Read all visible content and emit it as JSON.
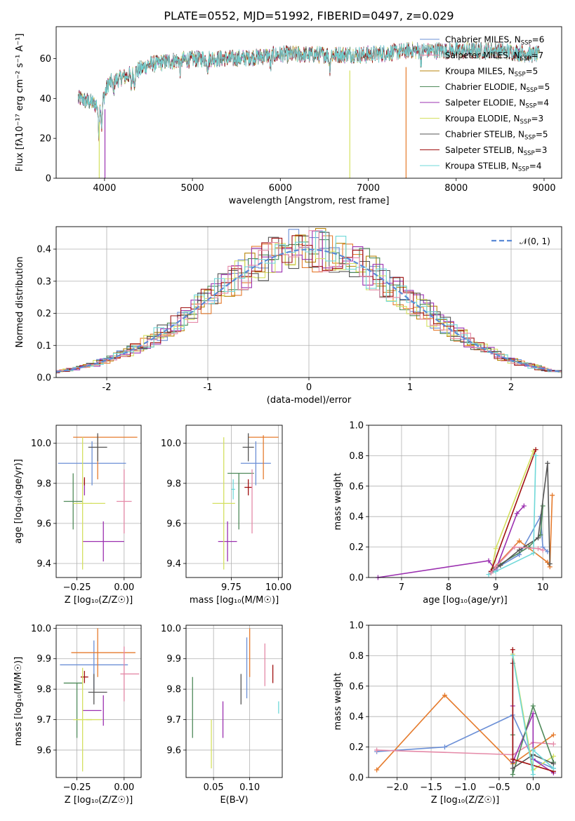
{
  "figure": {
    "title": "PLATE=0552, MJD=51992, FIBERID=0497, z=0.029"
  },
  "colors": [
    "#6b8fd6",
    "#e57b2d",
    "#b8860b",
    "#4f8a5a",
    "#9b30b0",
    "#d4e060",
    "#555555",
    "#a01010",
    "#6fd8d8",
    "#e58aa8"
  ],
  "chart_data": [
    {
      "id": "spectrum",
      "type": "line",
      "xlabel": "wavelength [Angstrom, rest frame]",
      "ylabel": "Flux [fλ10⁻¹⁷ erg cm⁻² s⁻¹ A⁻¹]",
      "xlim": [
        3450,
        9200
      ],
      "ylim": [
        0,
        76
      ],
      "xticks": [
        4000,
        5000,
        6000,
        7000,
        8000,
        9000
      ],
      "yticks": [
        0,
        20,
        40,
        60
      ],
      "series": [
        {
          "name": "Chabrier MILES, N",
          "sub": "SSP",
          "suffix": "=6",
          "color": "#6b8fd6"
        },
        {
          "name": "Salpeter MILES, N",
          "sub": "SSP",
          "suffix": "=7",
          "color": "#e58aa8"
        },
        {
          "name": "Kroupa MILES, N",
          "sub": "SSP",
          "suffix": "=5",
          "color": "#b8860b"
        },
        {
          "name": "Chabrier ELODIE, N",
          "sub": "SSP",
          "suffix": "=5",
          "color": "#4f8a5a"
        },
        {
          "name": "Salpeter ELODIE, N",
          "sub": "SSP",
          "suffix": "=4",
          "color": "#9b30b0"
        },
        {
          "name": "Kroupa ELODIE, N",
          "sub": "SSP",
          "suffix": "=3",
          "color": "#d4e060"
        },
        {
          "name": "Chabrier STELIB, N",
          "sub": "SSP",
          "suffix": "=5",
          "color": "#555555"
        },
        {
          "name": "Salpeter STELIB, N",
          "sub": "SSP",
          "suffix": "=3",
          "color": "#a01010"
        },
        {
          "name": "Kroupa STELIB, N",
          "sub": "SSP",
          "suffix": "=4",
          "color": "#6fd8d8"
        }
      ],
      "continuum": [
        [
          3700,
          40
        ],
        [
          3850,
          38
        ],
        [
          3950,
          36
        ],
        [
          4050,
          48
        ],
        [
          4300,
          52
        ],
        [
          4500,
          57
        ],
        [
          4800,
          59
        ],
        [
          5100,
          60
        ],
        [
          5500,
          60
        ],
        [
          6000,
          62
        ],
        [
          6500,
          62
        ],
        [
          7000,
          62
        ],
        [
          7500,
          64
        ],
        [
          8000,
          64
        ],
        [
          8500,
          64
        ],
        [
          8900,
          62
        ]
      ]
    },
    {
      "id": "residuals",
      "type": "histogram",
      "xlabel": "(data-model)/error",
      "ylabel": "Normed distribution",
      "xlim": [
        -2.5,
        2.5
      ],
      "ylim": [
        0,
        0.47
      ],
      "xticks": [
        -2,
        -1,
        0,
        1,
        2
      ],
      "yticks": [
        0.0,
        0.1,
        0.2,
        0.3,
        0.4
      ],
      "legend": "𝒩(0, 1)",
      "reference_curve": "N(0,1)"
    },
    {
      "id": "age_vs_Z",
      "type": "errorbar",
      "xlabel": "Z [log₁₀(Z/Z☉)]",
      "ylabel": "age  [log₁₀(age/yr)]",
      "xlim": [
        -0.36,
        0.09
      ],
      "ylim": [
        9.33,
        10.09
      ],
      "xticks": [
        -0.25,
        0.0
      ],
      "xticklabels": [
        "−0.25",
        "0.00"
      ],
      "yticks": [
        9.4,
        9.6,
        9.8,
        10.0
      ],
      "points": [
        {
          "x": -0.17,
          "xerr": 0.18,
          "y": 9.9,
          "yerr": 0.11,
          "color": "#6b8fd6"
        },
        {
          "x": -0.1,
          "xerr": 0.17,
          "y": 10.03,
          "yerr": 0.0,
          "color": "#e57b2d"
        },
        {
          "x": -0.14,
          "xerr": 0.0,
          "y": 9.93,
          "yerr": 0.11,
          "color": "#e57b2d"
        },
        {
          "x": -0.21,
          "xerr": 0.0,
          "y": 9.78,
          "yerr": 0.04,
          "color": "#9b30b0"
        },
        {
          "x": -0.27,
          "xerr": 0.05,
          "y": 9.71,
          "yerr": 0.14,
          "color": "#4f8a5a"
        },
        {
          "x": -0.11,
          "xerr": 0.11,
          "y": 9.51,
          "yerr": 0.1,
          "color": "#9b30b0"
        },
        {
          "x": -0.22,
          "xerr": 0.05,
          "y": 9.7,
          "yerr": 0.33,
          "color": "#d4e060"
        },
        {
          "x": -0.14,
          "xerr": 0.05,
          "y": 9.98,
          "yerr": 0.07,
          "color": "#555555"
        },
        {
          "x": -0.21,
          "xerr": 0.0,
          "y": 9.81,
          "yerr": 0.02,
          "color": "#a01010"
        },
        {
          "x": -0.14,
          "xerr": 0.04,
          "y": 9.7,
          "yerr": 0.0,
          "color": "#d4e060"
        },
        {
          "x": 0.0,
          "xerr": 0.04,
          "y": 9.71,
          "yerr": 0.16,
          "color": "#e58aa8"
        }
      ]
    },
    {
      "id": "age_vs_mass",
      "type": "errorbar",
      "xlabel": "mass [log₁₀(M/M☉)]",
      "ylabel": "",
      "xlim": [
        9.51,
        10.02
      ],
      "ylim": [
        9.33,
        10.09
      ],
      "xticks": [
        9.75,
        10.0
      ],
      "xticklabels": [
        "9.75",
        "10.00"
      ],
      "yticks": [
        9.4,
        9.6,
        9.8,
        10.0
      ],
      "points": [
        {
          "x": 9.88,
          "xerr": 0.08,
          "y": 9.9,
          "yerr": 0.11,
          "color": "#6b8fd6"
        },
        {
          "x": 9.92,
          "xerr": 0.08,
          "y": 10.03,
          "yerr": 0.0,
          "color": "#e57b2d"
        },
        {
          "x": 9.92,
          "xerr": 0.0,
          "y": 9.93,
          "yerr": 0.11,
          "color": "#e57b2d"
        },
        {
          "x": 9.8,
          "xerr": 0.07,
          "y": 9.85,
          "yerr": 0.0,
          "color": "#4f8a5a"
        },
        {
          "x": 9.79,
          "xerr": 0.0,
          "y": 9.71,
          "yerr": 0.14,
          "color": "#4f8a5a"
        },
        {
          "x": 9.73,
          "xerr": 0.05,
          "y": 9.51,
          "yerr": 0.1,
          "color": "#9b30b0"
        },
        {
          "x": 9.71,
          "xerr": 0.06,
          "y": 9.7,
          "yerr": 0.33,
          "color": "#d4e060"
        },
        {
          "x": 9.84,
          "xerr": 0.03,
          "y": 9.98,
          "yerr": 0.07,
          "color": "#555555"
        },
        {
          "x": 9.84,
          "xerr": 0.02,
          "y": 9.78,
          "yerr": 0.04,
          "color": "#a01010"
        },
        {
          "x": 9.76,
          "xerr": 0.01,
          "y": 9.77,
          "yerr": 0.05,
          "color": "#6fd8d8"
        },
        {
          "x": 9.86,
          "xerr": 0.0,
          "y": 9.71,
          "yerr": 0.16,
          "color": "#e58aa8"
        }
      ]
    },
    {
      "id": "weight_vs_age",
      "type": "line",
      "xlabel": "age  [log₁₀(age/yr)]",
      "ylabel": "mass weight",
      "xlim": [
        6.3,
        10.4
      ],
      "ylim": [
        0,
        1.0
      ],
      "xticks": [
        7,
        8,
        9,
        10
      ],
      "yticks": [
        0.0,
        0.2,
        0.4,
        0.6,
        0.8,
        1.0
      ],
      "series": [
        {
          "color": "#6b8fd6",
          "x": [
            8.9,
            9.0,
            9.5,
            9.95,
            10.0,
            10.1
          ],
          "y": [
            0.03,
            0.06,
            0.15,
            0.4,
            0.2,
            0.17
          ]
        },
        {
          "color": "#e57b2d",
          "x": [
            8.95,
            9.5,
            10.1,
            10.15,
            10.2
          ],
          "y": [
            0.06,
            0.24,
            0.1,
            0.07,
            0.54
          ]
        },
        {
          "color": "#d4e060",
          "x": [
            8.9,
            9.0,
            9.8
          ],
          "y": [
            0.03,
            0.19,
            0.83
          ]
        },
        {
          "color": "#9b30b0",
          "x": [
            6.5,
            8.85,
            9.0,
            9.45,
            9.6
          ],
          "y": [
            0.0,
            0.11,
            0.05,
            0.42,
            0.47
          ]
        },
        {
          "color": "#4f8a5a",
          "x": [
            8.95,
            9.7,
            9.95,
            10.0
          ],
          "y": [
            0.06,
            0.2,
            0.28,
            0.47
          ]
        },
        {
          "color": "#555555",
          "x": [
            8.9,
            9.1,
            9.5,
            9.9,
            10.1,
            10.15
          ],
          "y": [
            0.04,
            0.08,
            0.18,
            0.26,
            0.75,
            0.09
          ]
        },
        {
          "color": "#a01010",
          "x": [
            8.9,
            9.85
          ],
          "y": [
            0.04,
            0.84
          ]
        },
        {
          "color": "#6fd8d8",
          "x": [
            8.85,
            9.0,
            9.8,
            9.85
          ],
          "y": [
            0.02,
            0.04,
            0.16,
            0.8
          ]
        },
        {
          "color": "#e58aa8",
          "x": [
            8.9,
            9.0,
            9.4,
            9.9,
            10.0
          ],
          "y": [
            0.03,
            0.07,
            0.2,
            0.19,
            0.18
          ]
        }
      ]
    },
    {
      "id": "mass_vs_Z",
      "type": "errorbar",
      "xlabel": "Z [log₁₀(Z/Z☉)]",
      "ylabel": "mass [log₁₀(M/M☉)]",
      "xlim": [
        -0.36,
        0.09
      ],
      "ylim": [
        9.51,
        10.01
      ],
      "xticks": [
        -0.25,
        0.0
      ],
      "xticklabels": [
        "−0.25",
        "0.00"
      ],
      "yticks": [
        9.6,
        9.7,
        9.8,
        9.9,
        10.0
      ],
      "points": [
        {
          "x": -0.16,
          "xerr": 0.18,
          "y": 9.88,
          "yerr": 0.08,
          "color": "#6b8fd6"
        },
        {
          "x": -0.11,
          "xerr": 0.17,
          "y": 9.92,
          "yerr": 0.0,
          "color": "#e57b2d"
        },
        {
          "x": -0.14,
          "xerr": 0.0,
          "y": 9.92,
          "yerr": 0.08,
          "color": "#e57b2d"
        },
        {
          "x": -0.21,
          "xerr": 0.02,
          "y": 9.84,
          "yerr": 0.02,
          "color": "#a01010"
        },
        {
          "x": -0.27,
          "xerr": 0.05,
          "y": 9.82,
          "yerr": 0.0,
          "color": "#4f8a5a"
        },
        {
          "x": -0.25,
          "xerr": 0.0,
          "y": 9.73,
          "yerr": 0.09,
          "color": "#4f8a5a"
        },
        {
          "x": -0.11,
          "xerr": 0.0,
          "y": 9.73,
          "yerr": 0.05,
          "color": "#9b30b0"
        },
        {
          "x": -0.17,
          "xerr": 0.05,
          "y": 9.73,
          "yerr": 0.0,
          "color": "#9b30b0"
        },
        {
          "x": -0.22,
          "xerr": 0.05,
          "y": 9.7,
          "yerr": 0.17,
          "color": "#d4e060"
        },
        {
          "x": -0.16,
          "xerr": 0.04,
          "y": 9.7,
          "yerr": 0.0,
          "color": "#d4e060"
        },
        {
          "x": -0.14,
          "xerr": 0.05,
          "y": 9.79,
          "yerr": 0.0,
          "color": "#555555"
        },
        {
          "x": -0.16,
          "xerr": 0.0,
          "y": 9.8,
          "yerr": 0.05,
          "color": "#555555"
        },
        {
          "x": 0.0,
          "xerr": 0.0,
          "y": 9.85,
          "yerr": 0.09,
          "color": "#e58aa8"
        },
        {
          "x": 0.03,
          "xerr": 0.05,
          "y": 9.85,
          "yerr": 0.0,
          "color": "#e58aa8"
        }
      ]
    },
    {
      "id": "mass_vs_ebv",
      "type": "errorbar",
      "xlabel": "E(B-V)",
      "ylabel": "",
      "xlim": [
        0.012,
        0.145
      ],
      "ylim": [
        9.51,
        10.01
      ],
      "xticks": [
        0.05,
        0.1
      ],
      "xticklabels": [
        "0.05",
        "0.10"
      ],
      "yticks": [
        9.6,
        9.7,
        9.8,
        9.9,
        10.0
      ],
      "points": [
        {
          "x": 0.021,
          "xerr": 0,
          "y": 9.74,
          "yerr": 0.1,
          "color": "#4f8a5a"
        },
        {
          "x": 0.047,
          "xerr": 0,
          "y": 9.62,
          "yerr": 0.08,
          "color": "#d4e060"
        },
        {
          "x": 0.063,
          "xerr": 0,
          "y": 9.7,
          "yerr": 0.06,
          "color": "#9b30b0"
        },
        {
          "x": 0.088,
          "xerr": 0,
          "y": 9.8,
          "yerr": 0.05,
          "color": "#555555"
        },
        {
          "x": 0.096,
          "xerr": 0,
          "y": 9.87,
          "yerr": 0.1,
          "color": "#6b8fd6"
        },
        {
          "x": 0.1,
          "xerr": 0,
          "y": 9.92,
          "yerr": 0.08,
          "color": "#e57b2d"
        },
        {
          "x": 0.121,
          "xerr": 0,
          "y": 9.88,
          "yerr": 0.07,
          "color": "#e58aa8"
        },
        {
          "x": 0.132,
          "xerr": 0,
          "y": 9.85,
          "yerr": 0.03,
          "color": "#a01010"
        },
        {
          "x": 0.14,
          "xerr": 0,
          "y": 9.74,
          "yerr": 0.02,
          "color": "#6fd8d8"
        }
      ]
    },
    {
      "id": "weight_vs_Z",
      "type": "line",
      "xlabel": "Z [log₁₀(Z/Z☉)]",
      "ylabel": "mass weight",
      "xlim": [
        -2.42,
        0.42
      ],
      "ylim": [
        0,
        1.0
      ],
      "xticks": [
        -2.0,
        -1.5,
        -1.0,
        -0.5,
        0.0
      ],
      "xticklabels": [
        "−2.0",
        "−1.5",
        "−1.0",
        "−0.5",
        "0.0"
      ],
      "yticks": [
        0.0,
        0.2,
        0.4,
        0.6,
        0.8,
        1.0
      ],
      "series": [
        {
          "color": "#6b8fd6",
          "x": [
            -2.3,
            -1.3,
            -0.3,
            0.0,
            0.3
          ],
          "y": [
            0.17,
            0.2,
            0.41,
            0.12,
            0.06
          ]
        },
        {
          "color": "#e57b2d",
          "x": [
            -2.3,
            -1.3,
            -0.3,
            0.3
          ],
          "y": [
            0.05,
            0.54,
            0.09,
            0.28
          ]
        },
        {
          "color": "#e58aa8",
          "x": [
            -2.3,
            -0.3,
            0.0,
            0.3
          ],
          "y": [
            0.18,
            0.15,
            0.23,
            0.22
          ]
        },
        {
          "color": "#d4e060",
          "x": [
            -0.3,
            0.0,
            0.3
          ],
          "y": [
            0.81,
            0.05,
            0.14
          ]
        },
        {
          "color": "#9b30b0",
          "x": [
            -0.3,
            -0.3,
            0.0,
            0.0,
            0.3
          ],
          "y": [
            0.47,
            0.1,
            0.42,
            0.12,
            0.03
          ]
        },
        {
          "color": "#4f8a5a",
          "x": [
            -0.3,
            -0.3,
            0.0,
            0.3
          ],
          "y": [
            0.28,
            0.02,
            0.47,
            0.1
          ]
        },
        {
          "color": "#555555",
          "x": [
            -0.3,
            -0.3,
            0.0,
            0.3
          ],
          "y": [
            0.75,
            0.06,
            0.15,
            0.09
          ]
        },
        {
          "color": "#a01010",
          "x": [
            -0.3,
            -0.3,
            0.3
          ],
          "y": [
            0.84,
            0.12,
            0.04
          ]
        },
        {
          "color": "#6fd8d8",
          "x": [
            -0.3,
            0.0,
            0.0,
            0.3
          ],
          "y": [
            0.8,
            0.02,
            0.18,
            0.06
          ]
        }
      ]
    }
  ]
}
